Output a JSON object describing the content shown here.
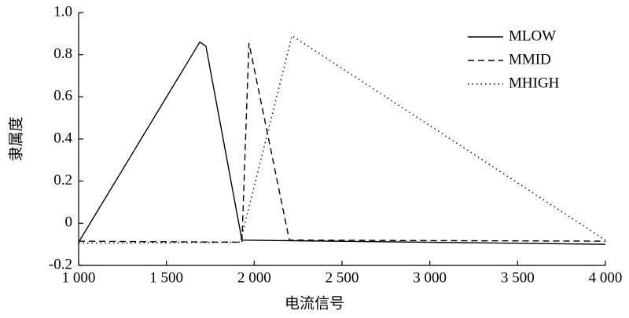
{
  "chart_data": {
    "type": "line",
    "xlabel": "电流信号",
    "ylabel": "隶属度",
    "xlim": [
      1000,
      4000
    ],
    "xticks": [
      {
        "value": 1000,
        "label": "1 000"
      },
      {
        "value": 1500,
        "label": "1 500"
      },
      {
        "value": 2000,
        "label": "2 000"
      },
      {
        "value": 2500,
        "label": "2 500"
      },
      {
        "value": 3000,
        "label": "3 000"
      },
      {
        "value": 3500,
        "label": "3 500"
      },
      {
        "value": 4000,
        "label": "4 000"
      }
    ],
    "ylim": [
      -0.2,
      1
    ],
    "yticks": [
      -0.2,
      0,
      0.2,
      0.4,
      0.6,
      0.8,
      {
        "value": 1,
        "label": "1.0"
      }
    ],
    "legend": "upper right",
    "series": [
      {
        "name": "MLOW",
        "color": "#000000",
        "dash": "solid",
        "x": [
          1000,
          1690,
          1725,
          1930,
          4000
        ],
        "values": [
          -0.09,
          0.86,
          0.84,
          -0.08,
          -0.1
        ]
      },
      {
        "name": "MMID",
        "color": "#000000",
        "dash": "dashed",
        "x": [
          1000,
          1930,
          1970,
          2200,
          4000
        ],
        "values": [
          -0.085,
          -0.09,
          0.855,
          -0.08,
          -0.085
        ]
      },
      {
        "name": "MHIGH",
        "color": "#000000",
        "dash": "dotted",
        "x": [
          1000,
          1920,
          2215,
          4000
        ],
        "values": [
          -0.095,
          -0.09,
          0.89,
          -0.08
        ]
      }
    ]
  }
}
